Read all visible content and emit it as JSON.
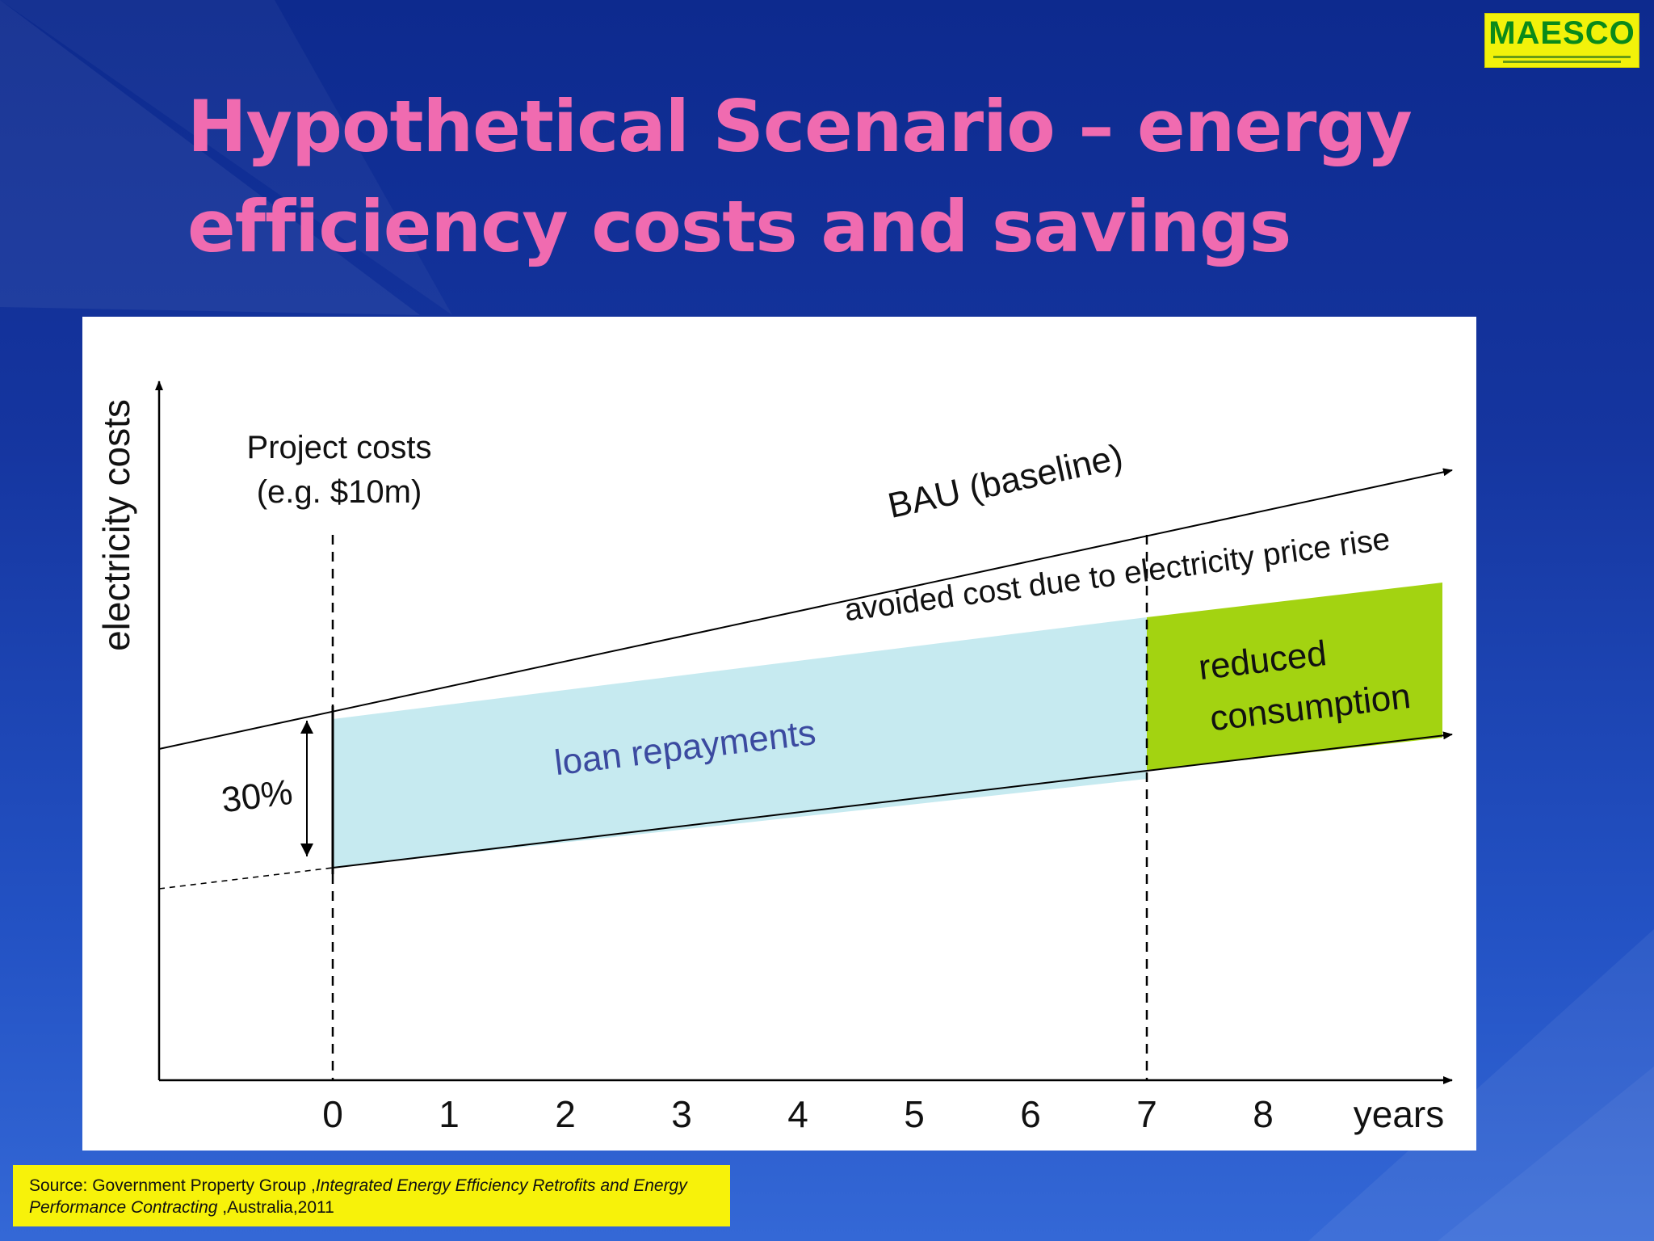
{
  "logo": {
    "text": "MAESCO"
  },
  "title": "Hypothetical Scenario – energy efficiency costs and savings",
  "chart_data": {
    "type": "area",
    "ylabel": "electricity costs",
    "x_unit_label": "years",
    "x_ticks": [
      "0",
      "1",
      "2",
      "3",
      "4",
      "5",
      "6",
      "7",
      "8"
    ],
    "annotations": {
      "project_costs_line1": "Project costs",
      "project_costs_line2": "(e.g. $10m)",
      "bau_label": "BAU (baseline)",
      "avoided_cost_label": "avoided cost due to electricity price rise",
      "loan_label": "loan repayments",
      "reduced_line1": "reduced",
      "reduced_line2": "consumption",
      "reduction_percent": "30%"
    },
    "colors": {
      "loan_fill": "#c6eaf0",
      "reduced_fill": "#a3d311",
      "loan_text": "#3b4aa0"
    }
  },
  "source": {
    "prefix": "Source: Government Property Group ,",
    "italic_title": "Integrated Energy Efficiency Retrofits and Energy Performance Contracting",
    "suffix": " ,Australia,2011"
  }
}
